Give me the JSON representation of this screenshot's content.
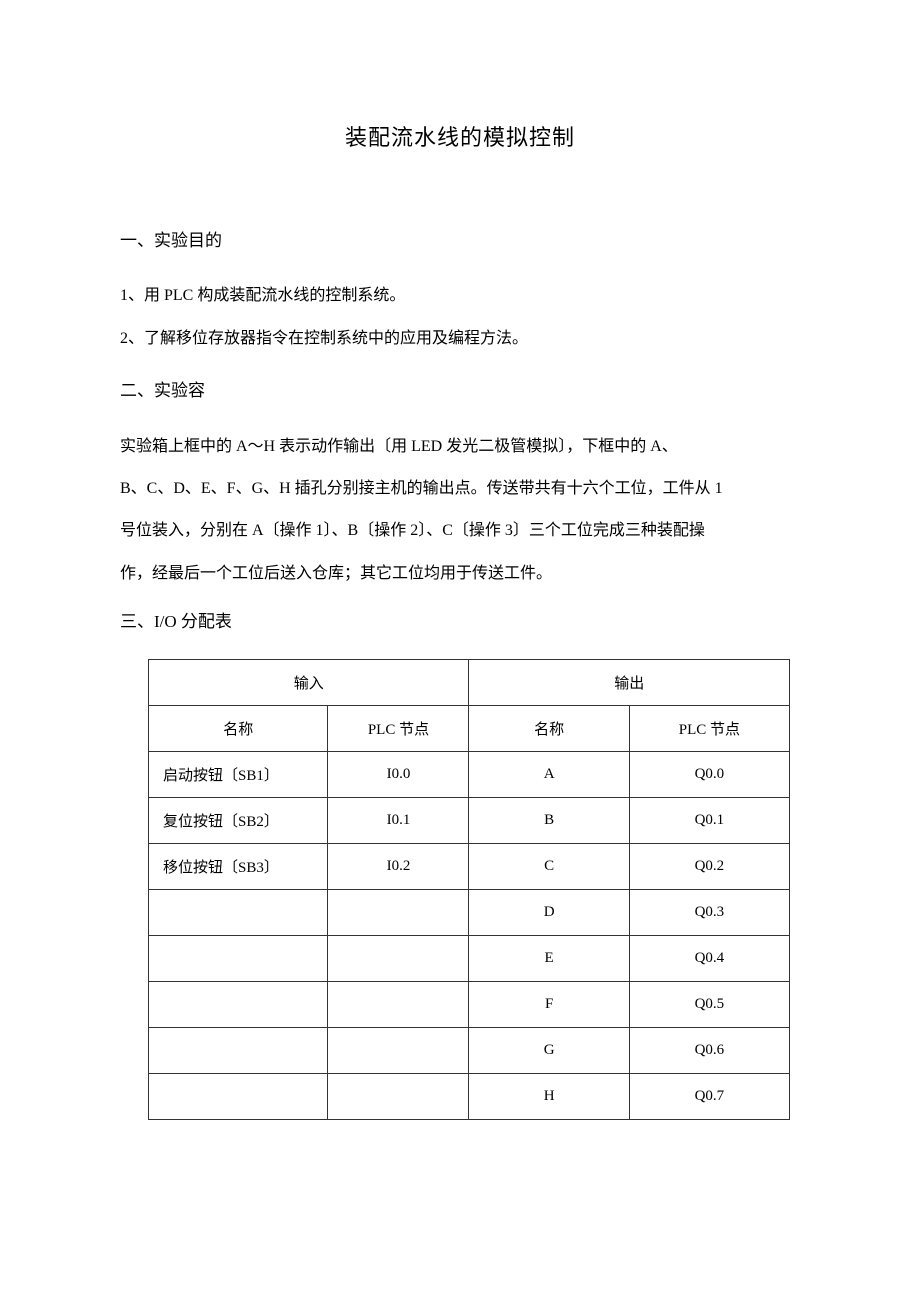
{
  "title": "装配流水线的模拟控制",
  "section1": {
    "heading": "一、实验目的",
    "line1": "1、用 PLC 构成装配流水线的控制系统。",
    "line2": "2、了解移位存放器指令在控制系统中的应用及编程方法。"
  },
  "section2": {
    "heading": "二、实验容",
    "line1": "实验箱上框中的 A〜H 表示动作输出〔用 LED 发光二极管模拟〕，下框中的 A、",
    "line2": "B、C、D、E、F、G、H 插孔分别接主机的输出点。传送带共有十六个工位，工件从 1",
    "line3": "号位装入，分别在 A〔操作 1〕、B〔操作 2〕、C〔操作 3〕三个工位完成三种装配操",
    "line4": "作，经最后一个工位后送入仓库；其它工位均用于传送工件。"
  },
  "section3": {
    "heading": "三、I/O 分配表"
  },
  "table": {
    "header_input": "输入",
    "header_output": "输出",
    "subheader_name": "名称",
    "subheader_plc": "PLC 节点",
    "columns_width": [
      "28%",
      "22%",
      "25%",
      "25%"
    ],
    "rows": [
      {
        "in_name": "启动按钮〔SB1〕",
        "in_plc": "I0.0",
        "out_name": "A",
        "out_plc": "Q0.0"
      },
      {
        "in_name": "复位按钮〔SB2〕",
        "in_plc": "I0.1",
        "out_name": "B",
        "out_plc": "Q0.1"
      },
      {
        "in_name": "移位按钮〔SB3〕",
        "in_plc": "I0.2",
        "out_name": "C",
        "out_plc": "Q0.2"
      },
      {
        "in_name": "",
        "in_plc": "",
        "out_name": "D",
        "out_plc": "Q0.3"
      },
      {
        "in_name": "",
        "in_plc": "",
        "out_name": "E",
        "out_plc": "Q0.4"
      },
      {
        "in_name": "",
        "in_plc": "",
        "out_name": "F",
        "out_plc": "Q0.5"
      },
      {
        "in_name": "",
        "in_plc": "",
        "out_name": "G",
        "out_plc": "Q0.6"
      },
      {
        "in_name": "",
        "in_plc": "",
        "out_name": "H",
        "out_plc": "Q0.7"
      }
    ]
  },
  "styles": {
    "background_color": "#ffffff",
    "text_color": "#000000",
    "border_color": "#333333",
    "title_fontsize": 22,
    "body_fontsize": 16,
    "table_fontsize": 15,
    "line_height": 2.4
  }
}
